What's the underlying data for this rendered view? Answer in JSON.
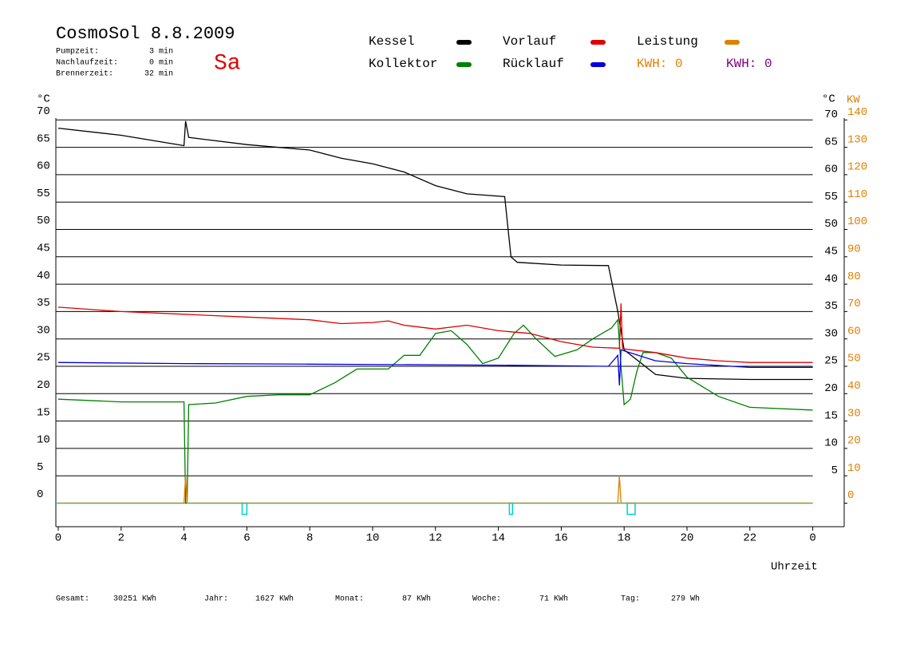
{
  "chart_data": {
    "type": "line",
    "title": "CosmoSol 8.8.2009",
    "day": "Sa",
    "info": [
      [
        "Pumpzeit:",
        "3 min"
      ],
      [
        "Nachlaufzeit:",
        "0 min"
      ],
      [
        "Brennerzeit:",
        "32 min"
      ]
    ],
    "kwh_labels": [
      {
        "text": "KWH: 0",
        "color": "#e08000"
      },
      {
        "text": "KWH: 0",
        "color": "#800080"
      }
    ],
    "y_label": "°C",
    "y_right_label": "°C",
    "y2_label": "KW",
    "x_label": "Uhrzeit",
    "footer": [
      [
        "Gesamt:",
        "30251 KWh"
      ],
      [
        "Jahr:",
        "1627 KWh"
      ],
      [
        "Monat:",
        "87 KWh"
      ],
      [
        "Woche:",
        "71 KWh"
      ],
      [
        "Tag:",
        "279 Wh"
      ]
    ],
    "xlim": [
      0,
      25
    ],
    "xticks": [
      0,
      2,
      4,
      6,
      8,
      10,
      12,
      14,
      16,
      18,
      20,
      22,
      {
        "value": 24,
        "label": "0"
      }
    ],
    "ylim": [
      -4.3,
      71.5
    ],
    "yticks": [
      0,
      5,
      10,
      15,
      20,
      25,
      30,
      35,
      40,
      45,
      50,
      55,
      60,
      65,
      70
    ],
    "yticks_right": [
      5,
      10,
      15,
      20,
      25,
      30,
      35,
      40,
      45,
      50,
      55,
      60,
      65,
      70
    ],
    "y2lim": [
      -8.6,
      143
    ],
    "y2ticks": [
      0,
      10,
      20,
      30,
      40,
      50,
      60,
      70,
      80,
      90,
      100,
      110,
      120,
      130,
      140
    ],
    "grid": true,
    "burner_intervals": [
      [
        5.85,
        6.0
      ],
      [
        14.35,
        14.45
      ],
      [
        18.1,
        18.35
      ]
    ],
    "burner_color": "#00d0d0",
    "series": [
      {
        "name": "Kessel",
        "color": "#000000",
        "x": [
          0,
          2,
          4,
          4.05,
          4.15,
          6,
          8,
          9,
          10,
          11,
          12,
          13,
          14.2,
          14.4,
          14.6,
          16,
          17.5,
          17.8,
          18,
          19,
          20,
          22,
          24
        ],
        "values": [
          68.5,
          67.2,
          65.3,
          69.8,
          66.8,
          65.5,
          64.5,
          63,
          62,
          60.5,
          58,
          56.5,
          56,
          45,
          44,
          43.5,
          43.4,
          35,
          28,
          23.5,
          22.8,
          22.6,
          22.6
        ]
      },
      {
        "name": "Kollektor",
        "color": "#008000",
        "x": [
          0,
          2,
          4,
          4.05,
          4.1,
          4.15,
          5,
          6,
          7,
          8,
          8.8,
          9.5,
          10.5,
          11,
          11.5,
          12,
          12.5,
          13,
          13.5,
          14,
          14.5,
          14.8,
          15.2,
          15.8,
          16.5,
          17,
          17.3,
          17.6,
          17.8,
          17.9,
          18,
          18.2,
          18.4,
          18.6,
          19,
          19.5,
          20,
          21,
          22,
          24
        ],
        "values": [
          19,
          18.5,
          18.5,
          0,
          0,
          18,
          18.3,
          19.5,
          19.8,
          19.8,
          22,
          24.5,
          24.5,
          27,
          27,
          31,
          31.5,
          29,
          25.5,
          26.5,
          31,
          32.5,
          30,
          26.8,
          28,
          30,
          31,
          32,
          33.5,
          25,
          18,
          19,
          24,
          27.5,
          27.5,
          26.5,
          23,
          19.5,
          17.5,
          17
        ]
      },
      {
        "name": "Vorlauf",
        "color": "#e00000",
        "x": [
          0,
          2,
          4,
          6,
          8,
          9,
          10,
          10.5,
          11,
          12,
          13,
          14,
          15,
          16,
          17,
          17.85,
          17.9,
          17.95,
          19,
          20,
          21,
          22,
          24
        ],
        "values": [
          35.8,
          35,
          34.5,
          34,
          33.5,
          32.8,
          33,
          33.3,
          32.5,
          31.8,
          32.5,
          31.5,
          31,
          29.5,
          28.5,
          28.3,
          36.5,
          28.2,
          27.5,
          26.5,
          26,
          25.7,
          25.7
        ]
      },
      {
        "name": "Rücklauf",
        "color": "#0000e0",
        "x": [
          0,
          4,
          8,
          14,
          17.5,
          17.8,
          17.85,
          17.9,
          19,
          20,
          22,
          24
        ],
        "values": [
          25.7,
          25.5,
          25.4,
          25.2,
          25,
          27,
          21.5,
          28,
          26,
          25.5,
          24.8,
          24.8
        ]
      },
      {
        "name": "Leistung",
        "color": "#e08000",
        "axis": "y2",
        "x": [
          0,
          4,
          4.05,
          4.1,
          17.8,
          17.85,
          17.9,
          24
        ],
        "values": [
          0,
          0,
          10,
          0,
          0,
          10,
          0,
          0
        ]
      }
    ]
  }
}
